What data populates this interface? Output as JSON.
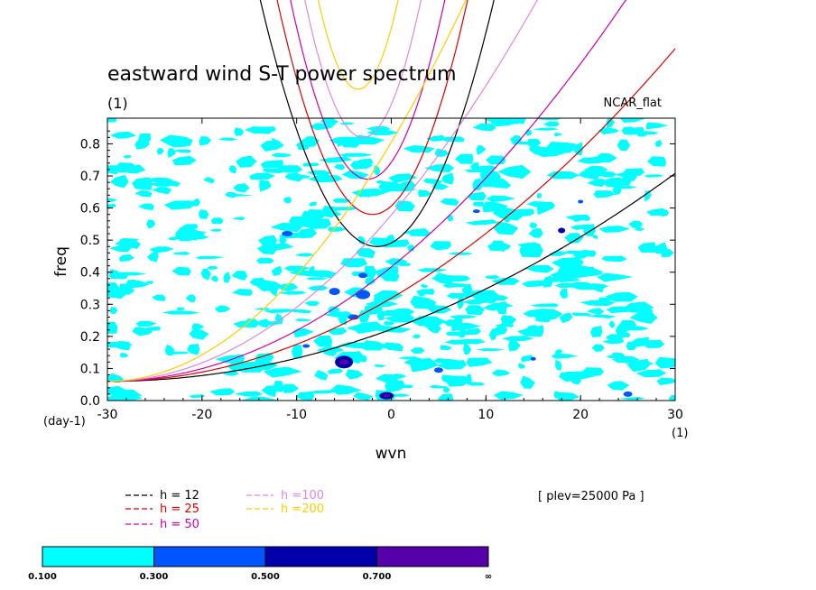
{
  "chart_data": {
    "type": "heatmap",
    "title": "eastward wind S-T power spectrum",
    "subtitle": "(1)",
    "annotation_topright": "NCAR_flat",
    "xlabel": "wvn",
    "ylabel": "freq",
    "x_unit": "(1)",
    "y_unit": "(day-1)",
    "xlim": [
      -30,
      30
    ],
    "ylim": [
      0,
      0.88
    ],
    "xticks": [
      -30,
      -20,
      -10,
      0,
      10,
      20,
      30
    ],
    "yticks": [
      0.0,
      0.1,
      0.2,
      0.3,
      0.4,
      0.5,
      0.6,
      0.7,
      0.8
    ],
    "ytick_labels": [
      "0.0",
      "0.1",
      "0.2",
      "0.3",
      "0.4",
      "0.5",
      "0.6",
      "0.7",
      "0.8"
    ],
    "xtick_labels": [
      "-30",
      "-20",
      "-10",
      "0",
      "10",
      "20",
      "30"
    ],
    "level_note": "[ plev=25000 Pa ]",
    "colorbar": {
      "levels": [
        "0.100",
        "0.300",
        "0.500",
        "0.700",
        "∞"
      ],
      "colors": [
        "#00ffff",
        "#0055ff",
        "#0000aa",
        "#5500aa"
      ]
    },
    "series": [
      {
        "name": "h = 12",
        "color": "#000000"
      },
      {
        "name": "h = 25",
        "color": "#dd0000"
      },
      {
        "name": "h = 50",
        "color": "#cc00aa"
      },
      {
        "name": "h =100",
        "color": "#dd88dd"
      },
      {
        "name": "h =200",
        "color": "#ffcc00"
      }
    ],
    "dispersion_minima": [
      {
        "h": 12,
        "ig_freq_min": 0.48
      },
      {
        "h": 25,
        "ig_freq_min": 0.58
      },
      {
        "h": 50,
        "ig_freq_min": 0.69
      },
      {
        "h": 100,
        "ig_freq_min": 0.82
      },
      {
        "h": 200,
        "ig_freq_min": 0.97
      }
    ]
  }
}
